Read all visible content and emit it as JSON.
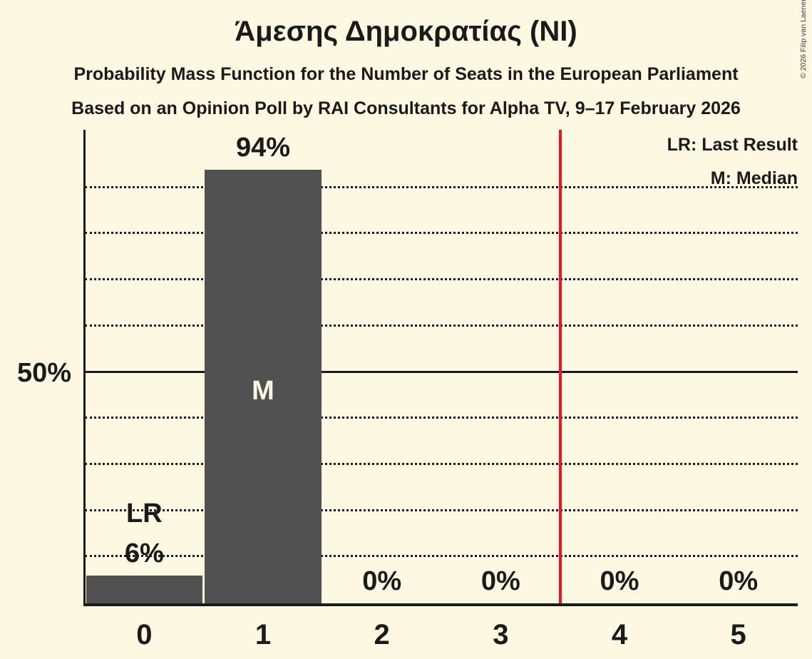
{
  "copyright": "© 2026 Filip van Laenen",
  "chart_data": {
    "type": "bar",
    "title": "Άμεσης Δημοκρατίας (NI)",
    "subtitle1": "Probability Mass Function for the Number of Seats in the European Parliament",
    "subtitle2": "Based on an Opinion Poll by RAI Consultants for Alpha TV, 9–17 February 2026",
    "xlabel": "",
    "ylabel": "",
    "categories": [
      "0",
      "1",
      "2",
      "3",
      "4",
      "5"
    ],
    "values": [
      6,
      94,
      0,
      0,
      0,
      0
    ],
    "value_labels": [
      "6%",
      "94%",
      "0%",
      "0%",
      "0%",
      "0%"
    ],
    "annotations": {
      "last_result_label": "LR",
      "last_result_index": 0,
      "median_label": "M",
      "median_index": 1
    },
    "legend": {
      "lr": "LR: Last Result",
      "m": "M: Median"
    },
    "legend_position": "top-right",
    "ylim": [
      0,
      100
    ],
    "ylabel_tick": {
      "value": 50,
      "label": "50%"
    },
    "gridlines_pct": [
      10,
      20,
      30,
      40,
      60,
      70,
      80,
      90
    ],
    "gridline_style": "dotted",
    "solid_line_pct": 50,
    "majority_line_x": 3.5,
    "colors": {
      "background": "#fdf8e1",
      "bar": "#515151",
      "majority_line": "#f01220",
      "text": "#1a1a1a",
      "bar_inner_label": "#fdf8e1"
    }
  }
}
